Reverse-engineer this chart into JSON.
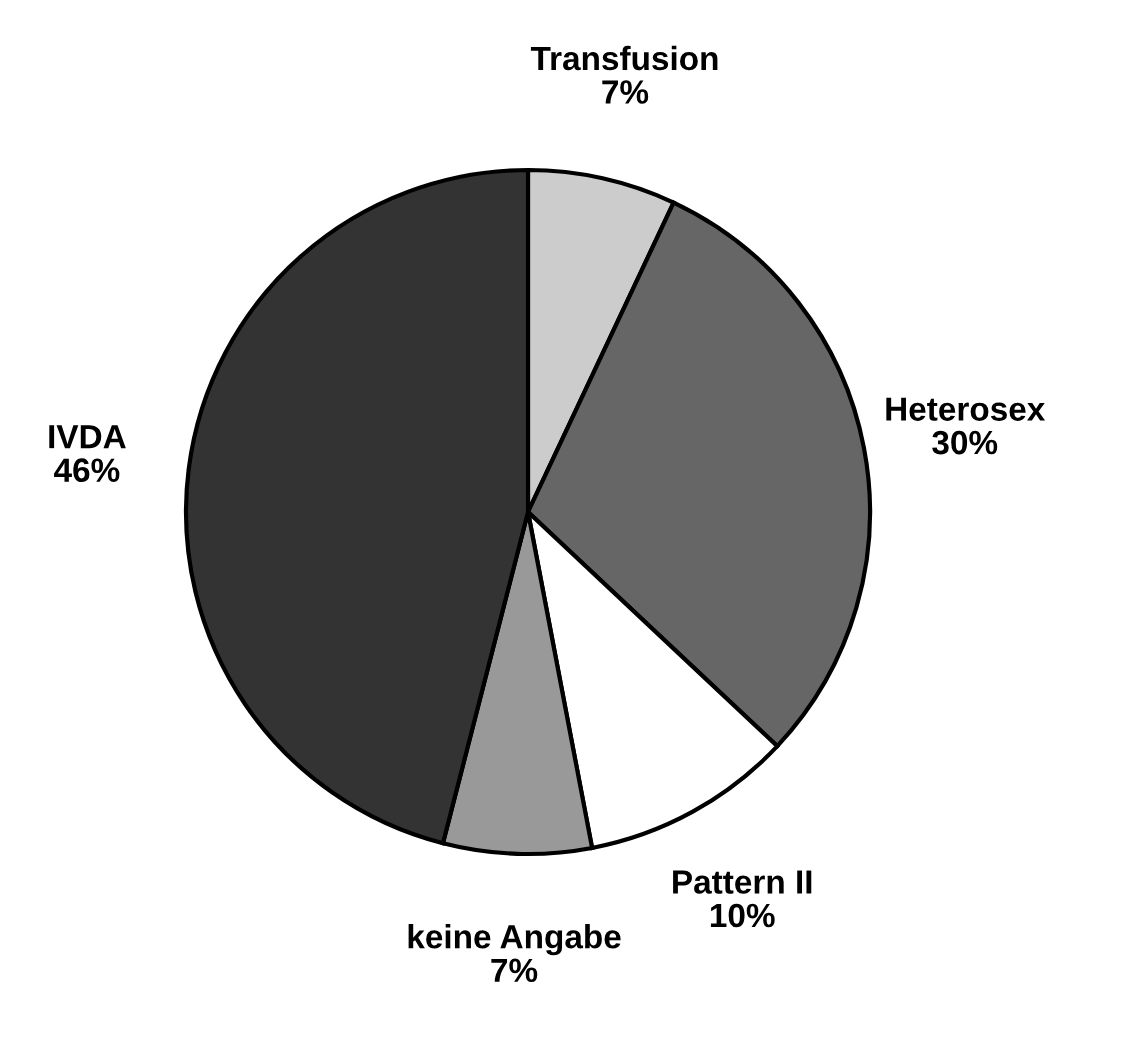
{
  "chart_data": {
    "type": "pie",
    "categories": [
      "Transfusion",
      "Heterosex",
      "Pattern II",
      "keine Angabe",
      "IVDA"
    ],
    "values": [
      7,
      30,
      10,
      7,
      46
    ],
    "value_labels": [
      "7%",
      "30%",
      "10%",
      "7%",
      "46%"
    ],
    "colors": [
      "#cccccc",
      "#666666",
      "#ffffff",
      "#999999",
      "#333333"
    ],
    "legend": false
  }
}
